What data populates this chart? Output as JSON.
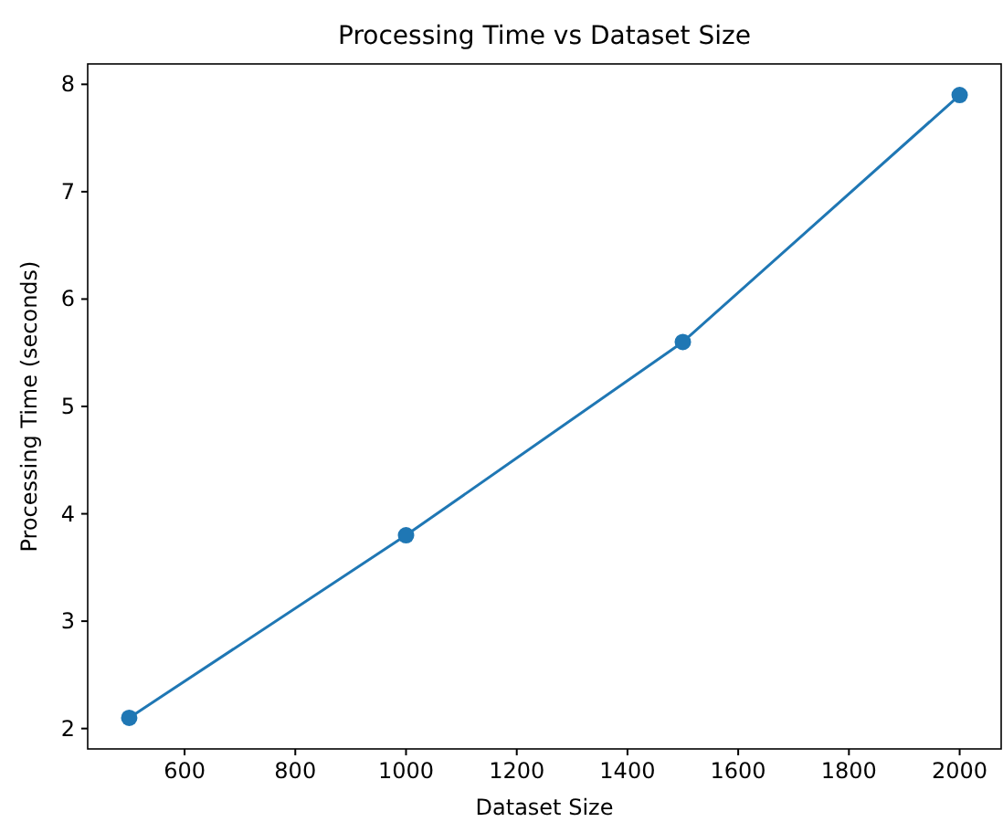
{
  "chart_data": {
    "type": "line",
    "title": "Processing Time vs Dataset Size",
    "xlabel": "Dataset Size",
    "ylabel": "Processing Time (seconds)",
    "x": [
      500,
      1000,
      1500,
      2000
    ],
    "series": [
      {
        "color": "#1f77b4",
        "values": [
          2.1,
          3.8,
          5.6,
          7.9
        ]
      }
    ],
    "xlim": [
      425,
      2075
    ],
    "xticks": [
      600,
      800,
      1000,
      1200,
      1400,
      1600,
      1800,
      2000
    ],
    "ylim": [
      1.81,
      8.19
    ],
    "yticks": [
      2,
      3,
      4,
      5,
      6,
      7,
      8
    ],
    "marker": "circle",
    "line_style": "solid"
  }
}
